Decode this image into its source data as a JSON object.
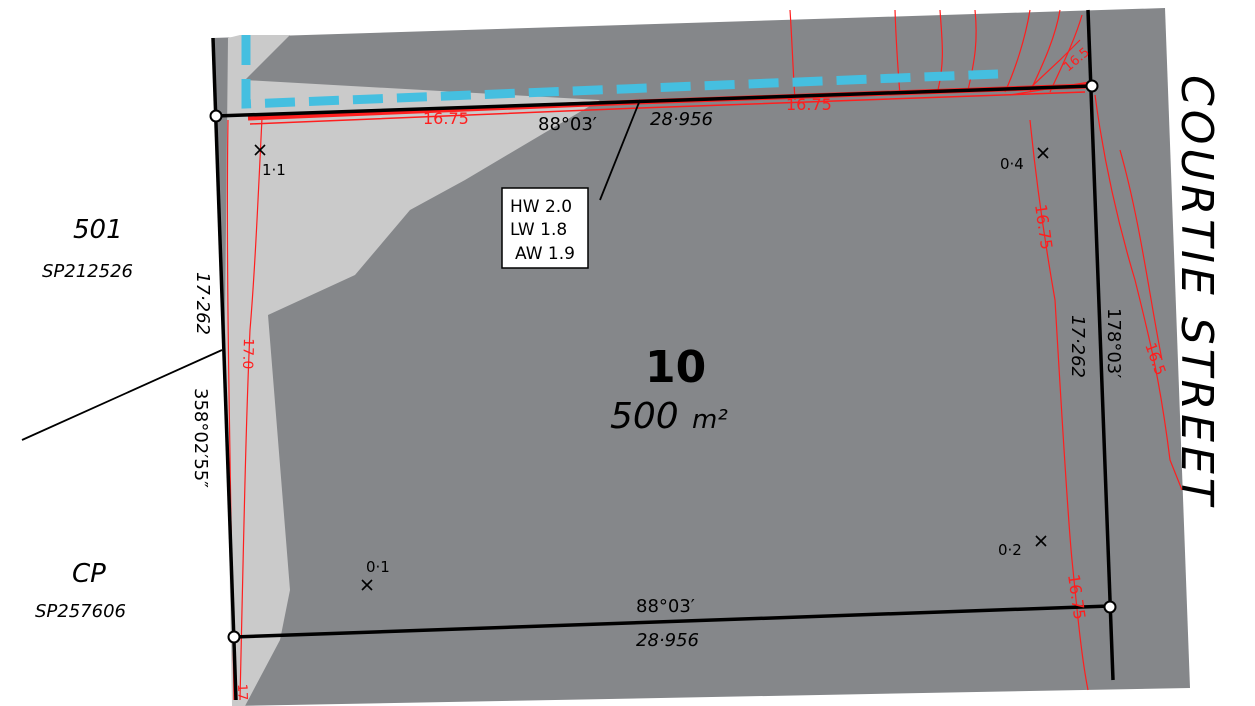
{
  "lot": {
    "number": "10",
    "area": "500",
    "area_unit": "m²"
  },
  "boundaries": {
    "north_bearing": "88°03′",
    "north_distance": "28·956",
    "south_bearing": "88°03′",
    "south_distance": "28·956",
    "east_bearing": "178°03′",
    "east_distance": "17·262",
    "west_bearing": "358°02′55″",
    "west_distance": "17·262"
  },
  "neighbours": [
    {
      "lot": "501",
      "plan": "SP212526"
    },
    {
      "lot": "CP",
      "plan": "SP257606"
    }
  ],
  "street": "COURTIE STREET",
  "water_box": {
    "lines": [
      "HW 2.0",
      "LW 1.8",
      "AW 1.9"
    ]
  },
  "spot_heights": [
    "1·1",
    "0·4",
    "0·2",
    "0·1"
  ],
  "contour_labels": [
    "16.75",
    "16.75",
    "16.75",
    "16.75",
    "17.0",
    "16.5",
    "16.5",
    "17"
  ],
  "colors": {
    "lot_fill": "#85878a",
    "sliver_fill": "#cacaca",
    "contour": "#ff1e1e",
    "easement": "#45bfe0",
    "boundary": "#000000"
  }
}
